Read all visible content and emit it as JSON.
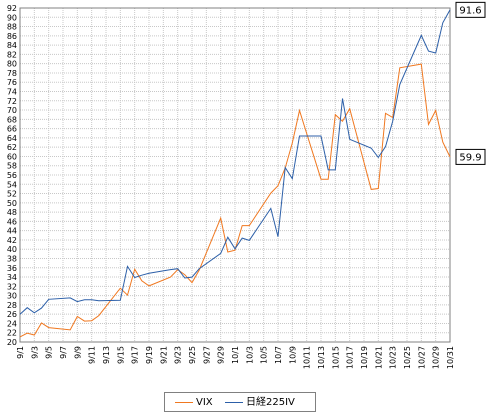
{
  "chart_data": {
    "type": "line",
    "ylim": [
      20,
      92
    ],
    "yticks": [
      20,
      22,
      24,
      26,
      28,
      30,
      32,
      34,
      36,
      38,
      40,
      42,
      44,
      46,
      48,
      50,
      52,
      54,
      56,
      58,
      60,
      62,
      64,
      66,
      68,
      70,
      72,
      74,
      76,
      78,
      80,
      82,
      84,
      86,
      88,
      90,
      92
    ],
    "xticks": [
      "9/1",
      "9/3",
      "9/5",
      "9/7",
      "9/9",
      "9/11",
      "9/13",
      "9/15",
      "9/17",
      "9/19",
      "9/21",
      "9/23",
      "9/25",
      "9/27",
      "9/29",
      "10/1",
      "10/3",
      "10/5",
      "10/7",
      "10/9",
      "10/11",
      "10/13",
      "10/15",
      "10/17",
      "10/19",
      "10/21",
      "10/23",
      "10/25",
      "10/27",
      "10/29",
      "10/31"
    ],
    "grid": true,
    "legend": "bottom-center",
    "series": [
      {
        "name": "VIX",
        "color": "#f07820",
        "end_label": "59.9",
        "x": [
          1,
          2,
          3,
          4,
          5,
          8,
          9,
          10,
          11,
          12,
          15,
          16,
          17,
          18,
          19,
          22,
          23,
          24,
          25,
          26,
          29,
          30,
          31,
          32,
          33,
          36,
          37,
          38,
          39,
          40,
          43,
          44,
          45,
          46,
          47,
          50,
          51,
          52,
          53,
          54,
          57,
          58,
          59,
          60,
          61
        ],
        "values": [
          21.1,
          21.9,
          21.5,
          24.1,
          23.1,
          22.6,
          25.5,
          24.5,
          24.6,
          25.7,
          31.6,
          30.1,
          35.7,
          33.2,
          32.1,
          34.0,
          35.6,
          34.5,
          32.8,
          35.5,
          46.7,
          39.4,
          39.8,
          45.1,
          45.1,
          52.1,
          53.7,
          57.5,
          62.9,
          69.9,
          55.1,
          55.1,
          69.0,
          67.6,
          70.3,
          52.9,
          53.1,
          69.3,
          68.4,
          79.1,
          79.9,
          66.9,
          69.9,
          63.1,
          59.9
        ]
      },
      {
        "name": "日経225IV",
        "color": "#2c5fa8",
        "end_label": "91.6",
        "x": [
          1,
          2,
          3,
          4,
          5,
          8,
          9,
          10,
          11,
          12,
          15,
          16,
          17,
          18,
          19,
          22,
          23,
          24,
          25,
          26,
          29,
          30,
          31,
          32,
          33,
          36,
          37,
          38,
          39,
          40,
          43,
          44,
          45,
          46,
          47,
          50,
          51,
          52,
          53,
          54,
          57,
          58,
          59,
          60,
          61
        ],
        "values": [
          26.0,
          27.4,
          26.3,
          27.3,
          29.2,
          29.5,
          28.7,
          29.1,
          29.1,
          28.9,
          29.0,
          36.3,
          33.9,
          34.4,
          34.8,
          35.6,
          35.8,
          33.8,
          34.0,
          35.8,
          39.1,
          42.6,
          40.1,
          42.4,
          41.9,
          48.8,
          42.7,
          57.6,
          55.2,
          64.4,
          64.4,
          57.1,
          57.1,
          72.5,
          63.7,
          61.8,
          59.8,
          62.1,
          67.6,
          75.5,
          86.1,
          82.7,
          82.3,
          88.8,
          91.6
        ]
      }
    ]
  },
  "legend": {
    "vix_label": "VIX",
    "nikkei_label": "日経225IV"
  }
}
